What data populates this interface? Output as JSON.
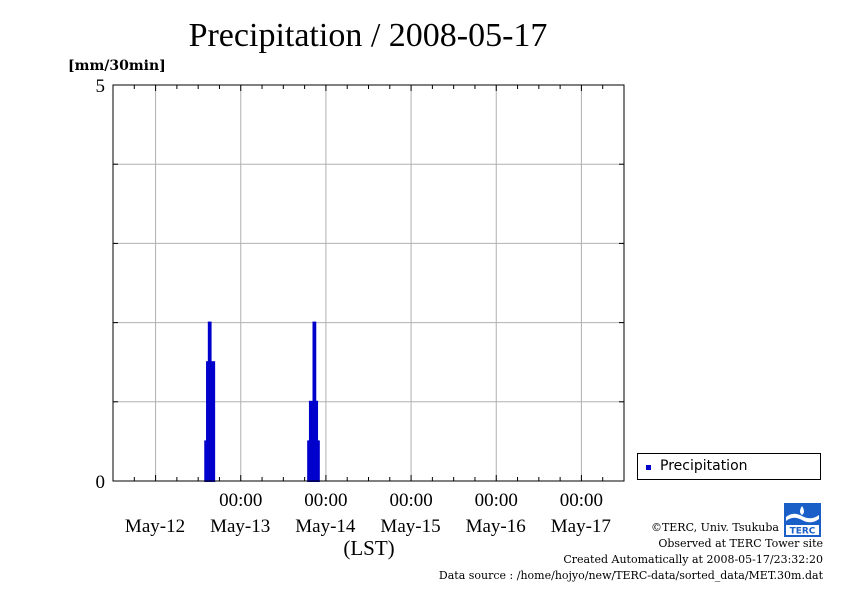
{
  "chart_data": {
    "type": "bar",
    "title": "Precipitation / 2008-05-17",
    "ylabel": "[mm/30min]",
    "xlabel": "(LST)",
    "ylim": [
      0,
      5
    ],
    "ytick_labels": [
      "5",
      "0"
    ],
    "x_range_hours_from_start": [
      0,
      144
    ],
    "x_start_label": "2008-05-11 12:00",
    "time_labels": [
      "00:00",
      "00:00",
      "00:00",
      "00:00",
      "00:00"
    ],
    "date_labels": [
      "May-12",
      "May-13",
      "May-14",
      "May-15",
      "May-16",
      "May-17"
    ],
    "grid": true,
    "legend_position": "bottom-right",
    "series": [
      {
        "name": "Precipitation",
        "color": "#0000cc",
        "bars": [
          {
            "t": "2008-05-12 14:00",
            "v": 0.5
          },
          {
            "t": "2008-05-12 14:30",
            "v": 1.5
          },
          {
            "t": "2008-05-12 15:00",
            "v": 2.0
          },
          {
            "t": "2008-05-12 15:30",
            "v": 1.0
          },
          {
            "t": "2008-05-12 16:00",
            "v": 1.5
          },
          {
            "t": "2008-05-13 19:00",
            "v": 0.5
          },
          {
            "t": "2008-05-13 19:30",
            "v": 1.0
          },
          {
            "t": "2008-05-13 20:00",
            "v": 0.5
          },
          {
            "t": "2008-05-13 20:30",
            "v": 2.0
          },
          {
            "t": "2008-05-13 21:00",
            "v": 1.0
          },
          {
            "t": "2008-05-13 21:30",
            "v": 0.5
          }
        ]
      }
    ]
  },
  "legend": {
    "label": "Precipitation",
    "color": "#0000cc"
  },
  "credits": {
    "copyright": "©TERC, Univ. Tsukuba",
    "site": "Observed at TERC Tower site",
    "created": "Created Automatically at 2008-05-17/23:32:20",
    "source": "Data source : /home/hojyo/new/TERC-data/sorted_data/MET.30m.dat"
  },
  "logo": {
    "text": "TERC",
    "color": "#1a5fc8"
  }
}
